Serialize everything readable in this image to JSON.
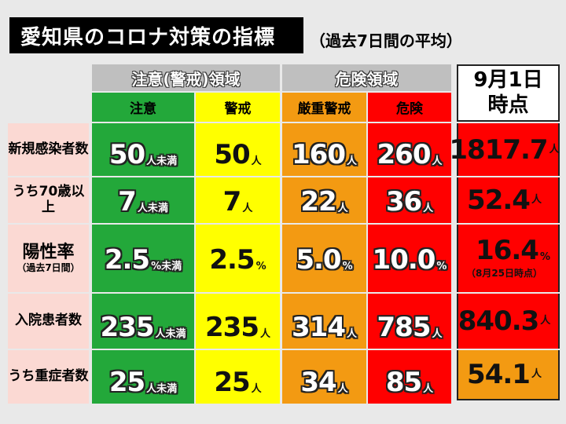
{
  "title": "愛知県のコロナ対策の指標",
  "subtitle": "（過去7日間の平均）",
  "headers": {
    "caution_group": "注意(警戒)領域",
    "danger_group": "危険領域",
    "caution": "注意",
    "warning": "警戒",
    "severe": "厳重警戒",
    "danger": "危険",
    "today_line1": "9月1日",
    "today_line2": "時点"
  },
  "rows": [
    {
      "label": "新規感染者数",
      "caution": {
        "v": "50",
        "u": "人未満"
      },
      "warning": {
        "v": "50",
        "u": "人"
      },
      "severe": {
        "v": "160",
        "u": "人"
      },
      "danger": {
        "v": "260",
        "u": "人"
      },
      "today": {
        "v": "1817.7",
        "u": "人"
      }
    },
    {
      "label": "うち70歳以上",
      "caution": {
        "v": "7",
        "u": "人未満"
      },
      "warning": {
        "v": "7",
        "u": "人"
      },
      "severe": {
        "v": "22",
        "u": "人"
      },
      "danger": {
        "v": "36",
        "u": "人"
      },
      "today": {
        "v": "52.4",
        "u": "人"
      }
    },
    {
      "label": "陽性率",
      "label_note": "（過去7日間）",
      "caution": {
        "v": "2.5",
        "u": "%未満"
      },
      "warning": {
        "v": "2.5",
        "u": "%"
      },
      "severe": {
        "v": "5.0",
        "u": "%"
      },
      "danger": {
        "v": "10.0",
        "u": "%"
      },
      "today": {
        "v": "16.4",
        "u": "%",
        "note": "（8月25日時点）"
      }
    },
    {
      "label": "入院患者数",
      "caution": {
        "v": "235",
        "u": "人未満"
      },
      "warning": {
        "v": "235",
        "u": "人"
      },
      "severe": {
        "v": "314",
        "u": "人"
      },
      "danger": {
        "v": "785",
        "u": "人"
      },
      "today": {
        "v": "840.3",
        "u": "人"
      }
    },
    {
      "label": "うち重症者数",
      "caution": {
        "v": "25",
        "u": "人未満"
      },
      "warning": {
        "v": "25",
        "u": "人"
      },
      "severe": {
        "v": "34",
        "u": "人"
      },
      "danger": {
        "v": "85",
        "u": "人"
      },
      "today": {
        "v": "54.1",
        "u": "人"
      }
    }
  ],
  "colors": {
    "caution": "#23a83a",
    "warning": "#ffff00",
    "severe": "#f39a12",
    "danger": "#ff0000",
    "row_label_bg": "#fbd9d3",
    "header_bg": "#bfbfbf"
  }
}
